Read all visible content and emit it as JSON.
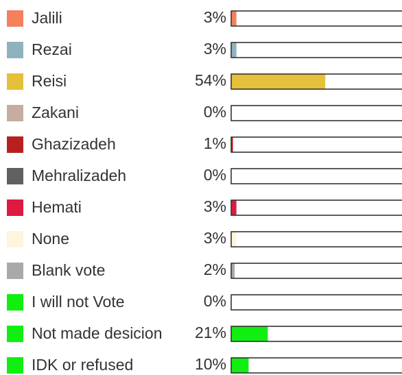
{
  "chart_data": {
    "type": "bar",
    "orientation": "horizontal",
    "title": "",
    "xlabel": "",
    "ylabel": "",
    "xlim": [
      0,
      100
    ],
    "grid": false,
    "legend": "left, inline with each bar",
    "categories": [
      "Jalili",
      "Rezai",
      "Reisi",
      "Zakani",
      "Ghazizadeh",
      "Mehralizadeh",
      "Hemati",
      "None",
      "Blank vote",
      "I will not Vote",
      "Not made desicion",
      "IDK or refused"
    ],
    "values": [
      3,
      3,
      54,
      0,
      1,
      0,
      3,
      3,
      2,
      0,
      21,
      10
    ],
    "value_labels": [
      "3%",
      "3%",
      "54%",
      "0%",
      "1%",
      "0%",
      "3%",
      "3%",
      "2%",
      "0%",
      "21%",
      "10%"
    ],
    "colors": [
      "#f4805e",
      "#8fb3be",
      "#e5c03a",
      "#c5ae9f",
      "#b8201f",
      "#606060",
      "#dc1a42",
      "#fff4dc",
      "#a9a9a9",
      "#11ee11",
      "#11ee11",
      "#11ee11"
    ]
  }
}
